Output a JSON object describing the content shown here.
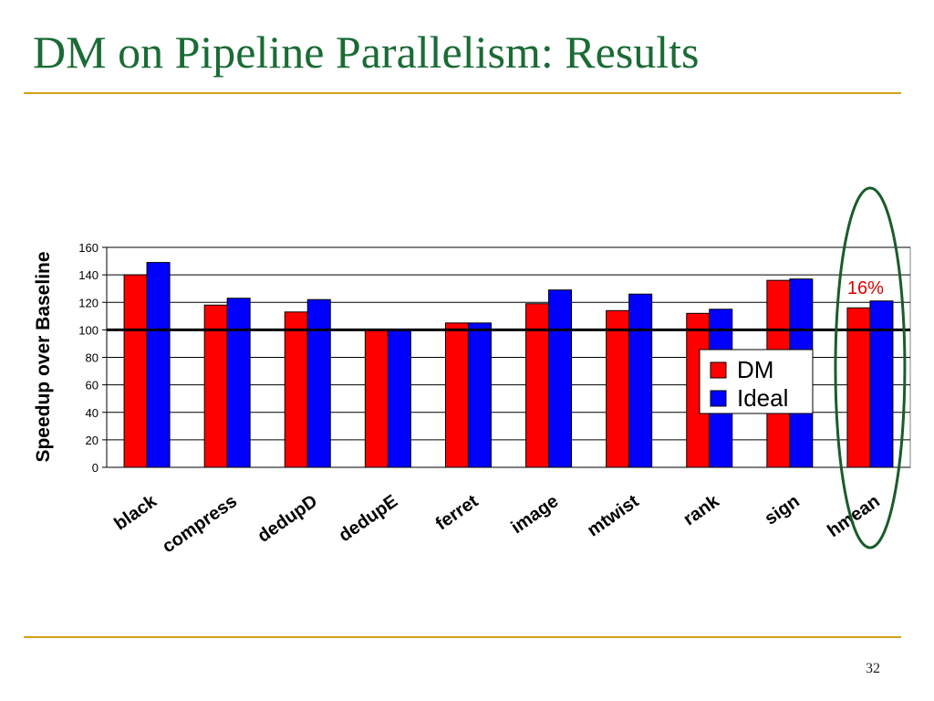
{
  "slide": {
    "title": "DM on Pipeline Parallelism: Results",
    "page_number": "32",
    "accent_color": "#d4a017",
    "title_color": "#1a6b35"
  },
  "chart_data": {
    "type": "bar",
    "title": "",
    "xlabel": "",
    "ylabel": "Speedup over Baseline",
    "ylim": [
      0,
      160
    ],
    "yticks": [
      0,
      20,
      40,
      60,
      80,
      100,
      120,
      140,
      160
    ],
    "grid": true,
    "baseline_value": 100,
    "categories": [
      "black",
      "compress",
      "dedupD",
      "dedupE",
      "ferret",
      "image",
      "mtwist",
      "rank",
      "sign",
      "hmean"
    ],
    "series": [
      {
        "name": "DM",
        "color": "#ff0000",
        "values": [
          140,
          118,
          113,
          100,
          105,
          119,
          114,
          112,
          136,
          116
        ]
      },
      {
        "name": "Ideal",
        "color": "#0000ff",
        "values": [
          149,
          123,
          122,
          100,
          105,
          129,
          126,
          115,
          137,
          121
        ]
      }
    ],
    "legend": {
      "position": "right",
      "entries": [
        "DM",
        "Ideal"
      ]
    },
    "annotations": [
      {
        "text": "16%",
        "target_category": "hmean",
        "color": "#e00000",
        "highlight": "ellipse",
        "highlight_color": "#1a5c2a"
      }
    ]
  }
}
